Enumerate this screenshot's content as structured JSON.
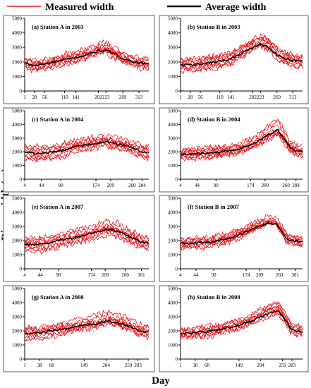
{
  "figure": {
    "legend": {
      "measured": "Measured width",
      "average": "Average width"
    },
    "ylabel": "River width (m)",
    "xlabel": "Day"
  },
  "colors": {
    "measured": "#e8141b",
    "average": "#000000"
  },
  "chart_data": [
    {
      "type": "line",
      "title": "(a) Station A in 2003",
      "ylim": [
        0,
        5000
      ],
      "yticks": [
        0,
        1000,
        2000,
        3000,
        4000,
        5000
      ],
      "xlim": [
        1,
        340
      ],
      "xticks": [
        1,
        28,
        56,
        110,
        141,
        202,
        223,
        269,
        313
      ],
      "average": {
        "x": [
          1,
          28,
          56,
          83,
          110,
          141,
          172,
          202,
          223,
          246,
          269,
          292,
          313,
          340
        ],
        "y": [
          1900,
          1750,
          1850,
          2000,
          2150,
          2300,
          2500,
          2750,
          2800,
          2550,
          2250,
          2050,
          1950,
          1850
        ]
      },
      "measured": {
        "count": 9,
        "spread": 420
      }
    },
    {
      "type": "line",
      "title": "(b) Station B in 2003",
      "ylim": [
        0,
        5000
      ],
      "yticks": [
        0,
        1000,
        2000,
        3000,
        4000,
        5000
      ],
      "xlim": [
        1,
        340
      ],
      "xticks": [
        1,
        28,
        56,
        110,
        141,
        202,
        223,
        269,
        313
      ],
      "average": {
        "x": [
          1,
          28,
          56,
          83,
          110,
          141,
          172,
          202,
          223,
          246,
          269,
          292,
          313,
          340
        ],
        "y": [
          1800,
          1800,
          1850,
          1950,
          2050,
          2200,
          2600,
          3000,
          3200,
          3000,
          2500,
          2200,
          2100,
          2050
        ]
      },
      "measured": {
        "count": 9,
        "spread": 500
      }
    },
    {
      "type": "line",
      "title": "(c) Station A in 2004",
      "ylim": [
        0,
        5000
      ],
      "yticks": [
        0,
        1000,
        2000,
        3000,
        4000,
        5000
      ],
      "xlim": [
        4,
        300
      ],
      "xticks": [
        4,
        44,
        90,
        174,
        209,
        260,
        284
      ],
      "average": {
        "x": [
          4,
          30,
          60,
          90,
          120,
          150,
          174,
          190,
          209,
          235,
          260,
          284,
          300
        ],
        "y": [
          2000,
          1850,
          1950,
          2050,
          2350,
          2500,
          2600,
          2750,
          2650,
          2500,
          2300,
          2000,
          1950
        ]
      },
      "measured": {
        "count": 9,
        "spread": 600
      }
    },
    {
      "type": "line",
      "title": "(d) Station B in 2004",
      "ylim": [
        0,
        5000
      ],
      "yticks": [
        0,
        1000,
        2000,
        3000,
        4000,
        5000
      ],
      "xlim": [
        4,
        300
      ],
      "xticks": [
        4,
        44,
        90,
        174,
        209,
        260,
        284
      ],
      "average": {
        "x": [
          4,
          30,
          60,
          90,
          120,
          150,
          174,
          200,
          215,
          240,
          255,
          270,
          284,
          300
        ],
        "y": [
          1800,
          1850,
          1900,
          1950,
          2050,
          2250,
          2500,
          2900,
          3200,
          3600,
          3000,
          2300,
          2050,
          2000
        ]
      },
      "measured": {
        "count": 9,
        "spread": 450
      }
    },
    {
      "type": "line",
      "title": "(e) Station A in 2007",
      "ylim": [
        0,
        5000
      ],
      "yticks": [
        0,
        1000,
        2000,
        3000,
        4000,
        5000
      ],
      "xlim": [
        4,
        320
      ],
      "xticks": [
        4,
        44,
        90,
        174,
        209,
        260,
        301
      ],
      "average": {
        "x": [
          4,
          30,
          60,
          90,
          130,
          174,
          209,
          240,
          260,
          285,
          301,
          320
        ],
        "y": [
          1750,
          1700,
          1800,
          2000,
          2200,
          2500,
          2800,
          2700,
          2400,
          2100,
          1900,
          1800
        ]
      },
      "measured": {
        "count": 9,
        "spread": 550
      }
    },
    {
      "type": "line",
      "title": "(f) Station B in 2007",
      "ylim": [
        0,
        5000
      ],
      "yticks": [
        0,
        1000,
        2000,
        3000,
        4000,
        5000
      ],
      "xlim": [
        4,
        320
      ],
      "xticks": [
        4,
        44,
        90,
        174,
        209,
        260,
        301
      ],
      "average": {
        "x": [
          4,
          30,
          60,
          90,
          130,
          174,
          209,
          230,
          250,
          265,
          280,
          301,
          320
        ],
        "y": [
          1800,
          1800,
          1850,
          1950,
          2150,
          2600,
          3000,
          3200,
          3200,
          2700,
          2100,
          1950,
          1900
        ]
      },
      "measured": {
        "count": 9,
        "spread": 420
      }
    },
    {
      "type": "line",
      "title": "(g) Station A in 2008",
      "ylim": [
        0,
        5000
      ],
      "yticks": [
        0,
        1000,
        2000,
        3000,
        4000,
        5000
      ],
      "xlim": [
        1,
        310
      ],
      "xticks": [
        1,
        38,
        68,
        149,
        204,
        259,
        283
      ],
      "average": {
        "x": [
          1,
          38,
          68,
          100,
          149,
          180,
          204,
          230,
          259,
          283,
          310
        ],
        "y": [
          1800,
          1850,
          2000,
          2150,
          2400,
          2500,
          2700,
          2600,
          2350,
          2050,
          1900
        ]
      },
      "measured": {
        "count": 9,
        "spread": 520
      }
    },
    {
      "type": "line",
      "title": "(h) Station B in 2008",
      "ylim": [
        0,
        5000
      ],
      "yticks": [
        0,
        1000,
        2000,
        3000,
        4000,
        5000
      ],
      "xlim": [
        1,
        310
      ],
      "xticks": [
        1,
        38,
        68,
        149,
        204,
        259,
        283
      ],
      "average": {
        "x": [
          1,
          38,
          68,
          100,
          149,
          180,
          204,
          230,
          250,
          270,
          283,
          310
        ],
        "y": [
          1800,
          1850,
          1950,
          2100,
          2400,
          2700,
          3000,
          3300,
          3400,
          2600,
          2100,
          1900
        ]
      },
      "measured": {
        "count": 9,
        "spread": 420
      }
    }
  ]
}
